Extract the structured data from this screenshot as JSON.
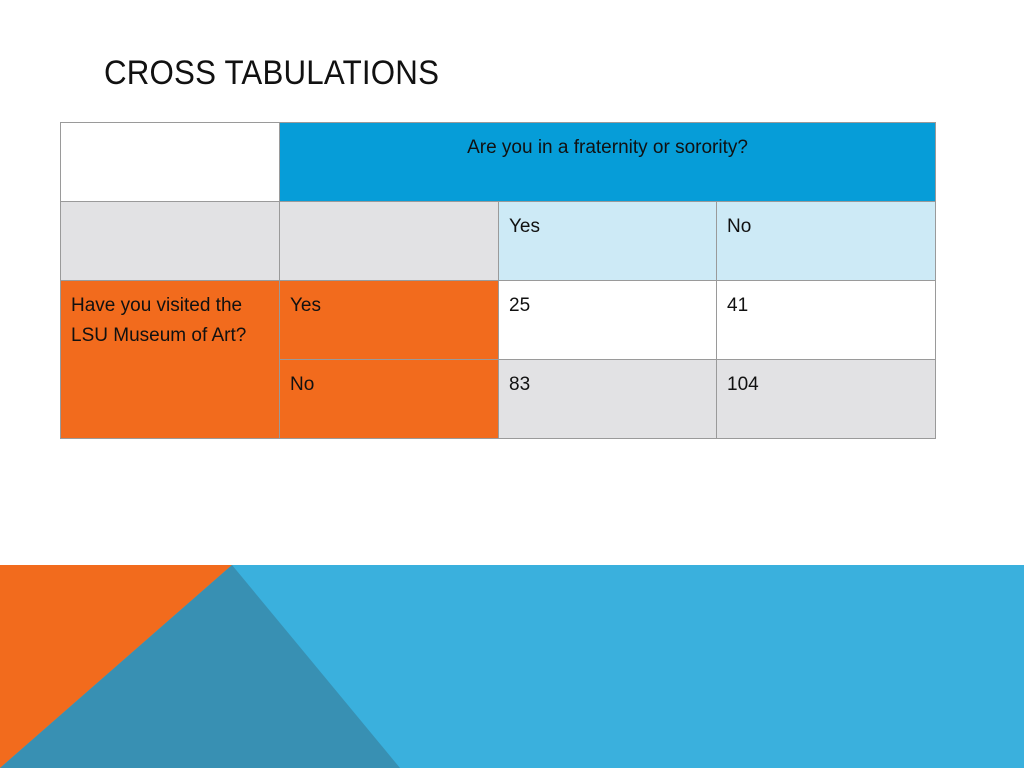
{
  "slide": {
    "title": "CROSS TABULATIONS",
    "colors": {
      "header_blue": "#069dd8",
      "light_blue": "#cdeaf6",
      "orange": "#f26b1d",
      "grey": "#e2e2e4",
      "footer_blue": "#3ab0dd",
      "footer_teal": "#3890b3"
    }
  },
  "table": {
    "column_variable": "Are you in a fraternity or sorority?",
    "row_variable": "Have you visited the LSU Museum of Art?",
    "column_categories": [
      "Yes",
      "No"
    ],
    "rows": [
      {
        "label": "Yes",
        "values": [
          "25",
          "41"
        ]
      },
      {
        "label": "No",
        "values": [
          "83",
          "104"
        ]
      }
    ]
  }
}
